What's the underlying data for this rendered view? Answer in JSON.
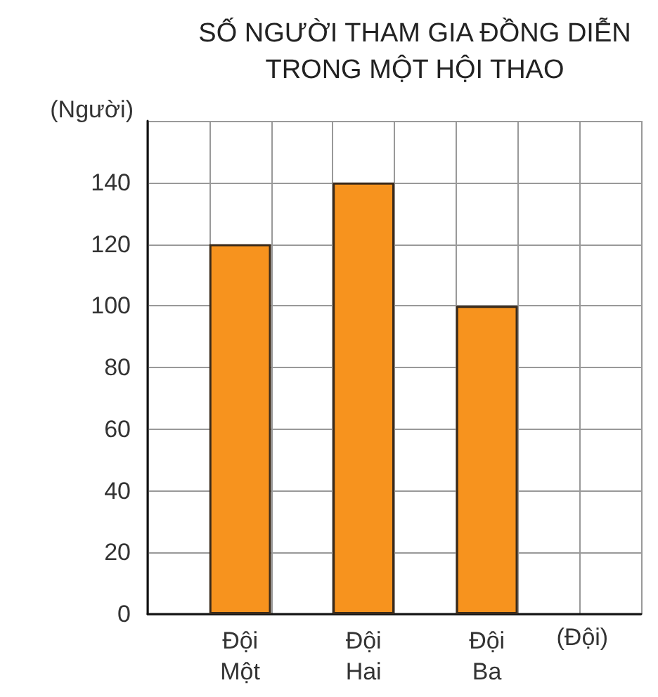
{
  "chart_data": {
    "type": "bar",
    "title": "SỐ NGƯỜI THAM GIA ĐỒNG DIỄN\nTRONG MỘT HỘI THAO",
    "ylabel": "(Người)",
    "xlabel": "(Đội)",
    "categories": [
      "Đội\nMột",
      "Đội\nHai",
      "Đội\nBa"
    ],
    "values": [
      120,
      140,
      100
    ],
    "color": "#f7931e",
    "ylim": [
      0,
      160
    ],
    "yticks": [
      0,
      20,
      40,
      60,
      80,
      100,
      120,
      140,
      {
        "value": 160,
        "label": null
      }
    ],
    "grid": true
  }
}
